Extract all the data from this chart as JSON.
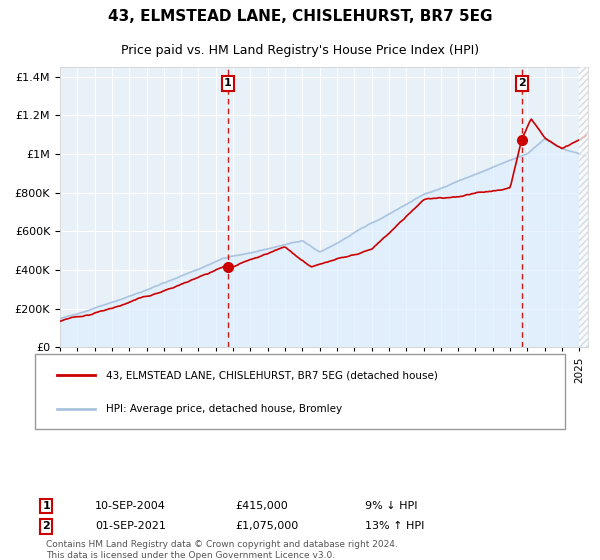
{
  "title": "43, ELMSTEAD LANE, CHISLEHURST, BR7 5EG",
  "subtitle": "Price paid vs. HM Land Registry's House Price Index (HPI)",
  "legend_line1": "43, ELMSTEAD LANE, CHISLEHURST, BR7 5EG (detached house)",
  "legend_line2": "HPI: Average price, detached house, Bromley",
  "sale1_date": "10-SEP-2004",
  "sale1_price": 415000,
  "sale1_hpi_pct": "9% ↓ HPI",
  "sale1_label": "1",
  "sale1_year": 2004.69,
  "sale2_date": "01-SEP-2021",
  "sale2_price": 1075000,
  "sale2_hpi_pct": "13% ↑ HPI",
  "sale2_label": "2",
  "sale2_year": 2021.67,
  "footer": "Contains HM Land Registry data © Crown copyright and database right 2024.\nThis data is licensed under the Open Government Licence v3.0.",
  "hpi_color": "#aac4e0",
  "price_color": "#cc0000",
  "bg_color": "#ddeeff",
  "plot_bg": "#e8f0f8",
  "grid_color": "#ffffff",
  "sale_marker_color": "#cc0000",
  "dashed_line_color": "#cc0000",
  "ylim": [
    0,
    1450000
  ],
  "xlim_start": 1995.0,
  "xlim_end": 2025.5
}
